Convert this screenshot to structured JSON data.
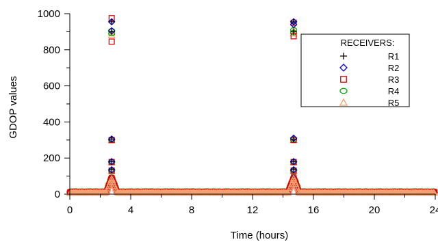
{
  "chart_data": {
    "type": "scatter",
    "title": "",
    "xlabel": "Time (hours)",
    "ylabel": "GDOP values",
    "xlim": [
      0,
      24
    ],
    "ylim": [
      0,
      1000
    ],
    "x_ticks": [
      "0",
      "4",
      "8",
      "12",
      "16",
      "20",
      "24"
    ],
    "y_ticks": [
      "0",
      "200",
      "400",
      "600",
      "800",
      "1000"
    ],
    "legend": {
      "title": "RECEIVERS:",
      "placement": "top-right"
    },
    "series": [
      {
        "name": "R1",
        "marker": "plus",
        "color": "#000000",
        "peak_points": [
          [
            2.75,
            955
          ],
          [
            2.75,
            900
          ],
          [
            2.75,
            305
          ],
          [
            2.75,
            180
          ],
          [
            2.75,
            135
          ],
          [
            14.7,
            955
          ],
          [
            14.7,
            900
          ],
          [
            14.7,
            305
          ],
          [
            14.7,
            180
          ],
          [
            14.7,
            135
          ]
        ],
        "baseline": 6
      },
      {
        "name": "R2",
        "marker": "diamond",
        "color": "#0000cc",
        "peak_points": [
          [
            2.75,
            955
          ],
          [
            2.75,
            905
          ],
          [
            2.75,
            305
          ],
          [
            2.75,
            180
          ],
          [
            2.75,
            135
          ],
          [
            14.7,
            955
          ],
          [
            14.7,
            940
          ],
          [
            14.7,
            310
          ],
          [
            14.7,
            180
          ],
          [
            14.7,
            135
          ]
        ],
        "baseline": 8
      },
      {
        "name": "R3",
        "marker": "square",
        "color": "#dd0000",
        "peak_points": [
          [
            2.75,
            975
          ],
          [
            2.75,
            845
          ],
          [
            2.75,
            300
          ],
          [
            2.75,
            178
          ],
          [
            2.75,
            130
          ],
          [
            14.7,
            950
          ],
          [
            14.7,
            875
          ],
          [
            14.7,
            300
          ],
          [
            14.7,
            178
          ],
          [
            14.7,
            130
          ]
        ],
        "baseline": 10
      },
      {
        "name": "R4",
        "marker": "circle",
        "color": "#00aa00",
        "peak_points": [
          [
            2.75,
            905
          ],
          [
            2.75,
            890
          ],
          [
            2.75,
            300
          ],
          [
            2.75,
            178
          ],
          [
            2.75,
            130
          ],
          [
            14.7,
            910
          ],
          [
            14.7,
            895
          ],
          [
            14.7,
            302
          ],
          [
            14.7,
            178
          ],
          [
            14.7,
            130
          ]
        ],
        "baseline": 14
      },
      {
        "name": "R5",
        "marker": "triangle",
        "color": "#f4a070",
        "peak_points": [
          [
            2.75,
            895
          ],
          [
            2.75,
            880
          ],
          [
            2.75,
            298
          ],
          [
            2.75,
            175
          ],
          [
            2.75,
            128
          ],
          [
            14.7,
            905
          ],
          [
            14.7,
            890
          ],
          [
            14.7,
            300
          ],
          [
            14.7,
            175
          ],
          [
            14.7,
            128
          ]
        ],
        "baseline": 5
      }
    ]
  }
}
